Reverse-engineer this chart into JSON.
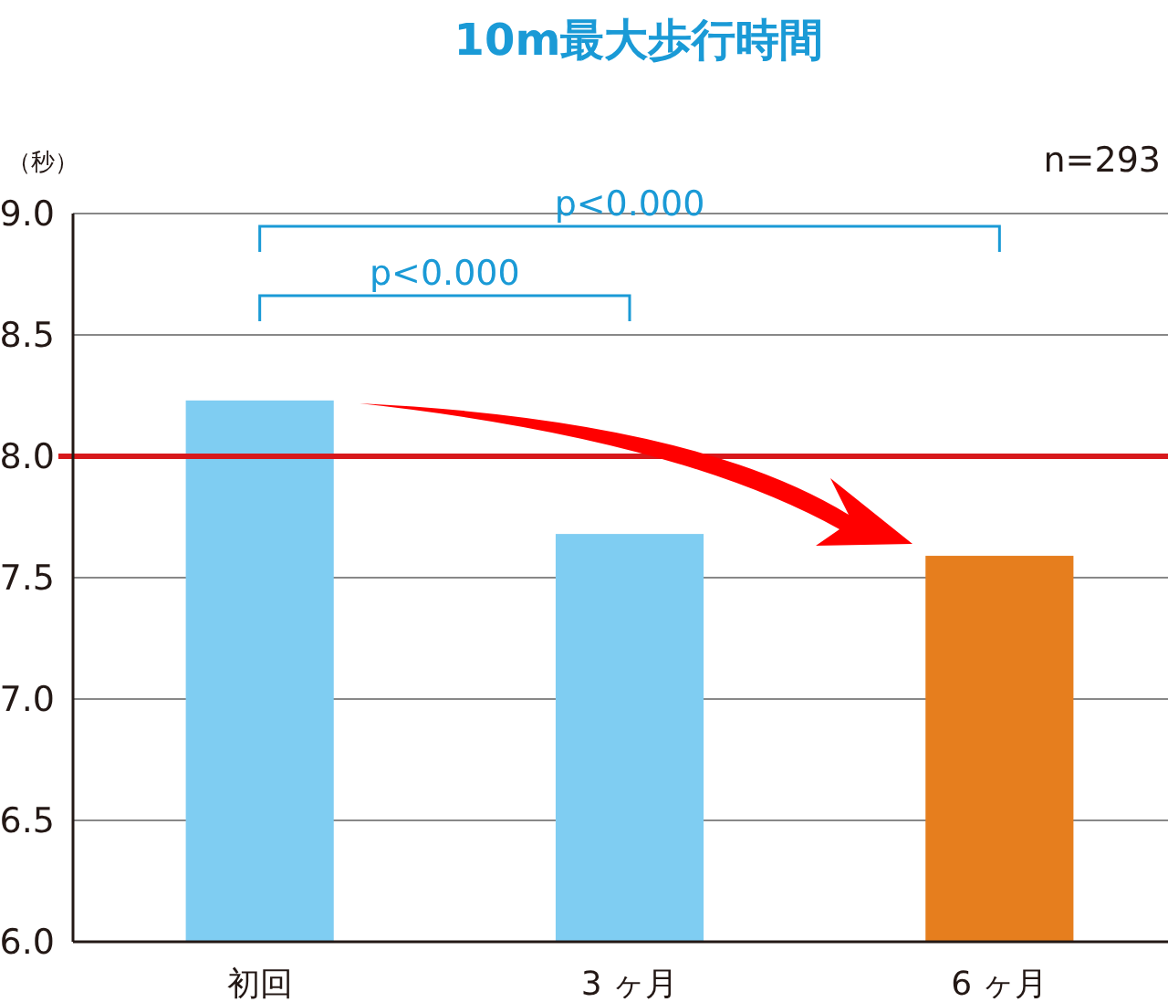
{
  "chart_data": {
    "type": "bar",
    "title": "10m最大歩行時間",
    "ylabel": "（秒）",
    "categories": [
      "初回",
      "3 ヶ月",
      "6 ヶ月"
    ],
    "values": [
      8.23,
      7.68,
      7.59
    ],
    "colors": [
      "#7fcdf2",
      "#7fcdf2",
      "#e67e1e"
    ],
    "ylim": [
      6.0,
      9.0
    ],
    "yticks": [
      {
        "value": 6,
        "label": "6.0"
      },
      {
        "value": 6.5,
        "label": "6.5"
      },
      {
        "value": 7,
        "label": "7.0"
      },
      {
        "value": 7.5,
        "label": "7.5"
      },
      {
        "value": 8,
        "label": "8.0"
      },
      {
        "value": 8.5,
        "label": "8.5"
      },
      {
        "value": 9,
        "label": "9.0"
      }
    ],
    "grid": "y",
    "ref_lines": [
      {
        "axis": "y",
        "value": 8.0,
        "color": "#d7191c"
      }
    ],
    "annotations": [
      "n=293",
      "p<0.000",
      "p<0.000"
    ]
  }
}
